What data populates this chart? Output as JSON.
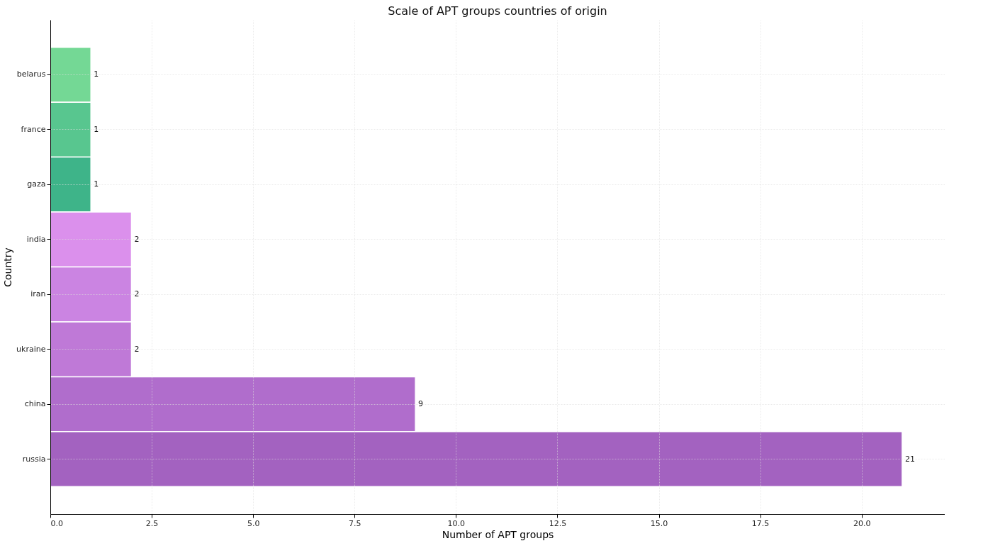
{
  "chart_data": {
    "type": "bar",
    "orientation": "horizontal",
    "title": "Scale of APT groups countries of origin",
    "xlabel": "Number of APT groups",
    "ylabel": "Country",
    "categories": [
      "belarus",
      "france",
      "gaza",
      "india",
      "iran",
      "ukraine",
      "china",
      "russia"
    ],
    "values": [
      1,
      1,
      1,
      2,
      2,
      2,
      9,
      21
    ],
    "colors": [
      "#74d895",
      "#58c68f",
      "#3eb489",
      "#db90ec",
      "#cb84e2",
      "#bf79d7",
      "#b06dcc",
      "#a362c0"
    ],
    "xlim": [
      0,
      22.05
    ],
    "xticks": [
      {
        "value": 0,
        "label": "0.0"
      },
      2.5,
      {
        "value": 5,
        "label": "5.0"
      },
      7.5,
      {
        "value": 10,
        "label": "10.0"
      },
      12.5,
      {
        "value": 15,
        "label": "15.0"
      },
      17.5,
      {
        "value": 20,
        "label": "20.0"
      }
    ],
    "grid": true,
    "data_labels": true
  }
}
